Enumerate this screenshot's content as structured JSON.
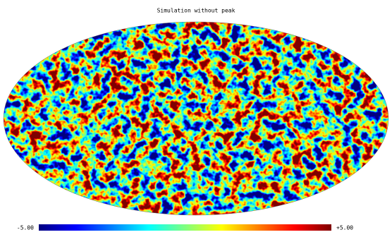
{
  "title": "Simulation without peak",
  "colorbar": {
    "min_label": "-5.00",
    "max_label": "+5.00"
  }
}
